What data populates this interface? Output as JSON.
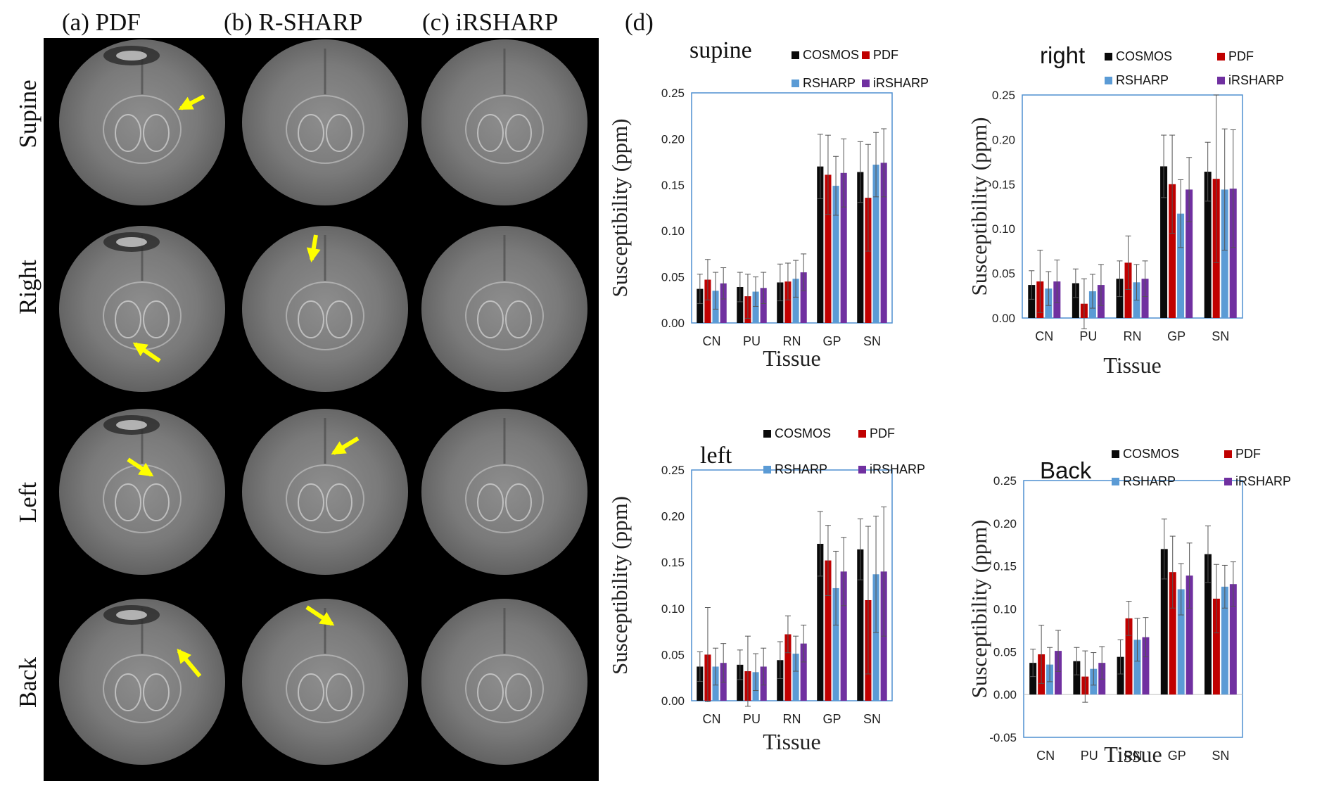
{
  "panel_a_label": "(a) PDF",
  "panel_b_label": "(b) R-SHARP",
  "panel_c_label": "(c) iRSHARP",
  "panel_d_label": "(d)",
  "row_labels": [
    "Supine",
    "Right",
    "Left",
    "Back"
  ],
  "colors": {
    "COSMOS": "#0a0a0a",
    "PDF": "#c00000",
    "RSHARP": "#5b9bd5",
    "iRSHARP": "#7030a0",
    "plot_border": "#4f8fd0",
    "arrow": "#ffff00"
  },
  "chart_data": [
    {
      "type": "bar",
      "title": "supine",
      "xlabel": "Tissue",
      "ylabel": "Susceptibility (ppm)",
      "ylim": [
        0,
        0.25
      ],
      "yticks": [
        "0.00",
        "0.05",
        "0.10",
        "0.15",
        "0.20",
        "0.25"
      ],
      "categories": [
        "CN",
        "PU",
        "RN",
        "GP",
        "SN"
      ],
      "legend": [
        "COSMOS",
        "PDF",
        "RSHARP",
        "iRSHARP"
      ],
      "series": [
        {
          "name": "COSMOS",
          "values": [
            0.037,
            0.039,
            0.044,
            0.17,
            0.164
          ],
          "errors": [
            0.016,
            0.016,
            0.02,
            0.035,
            0.033
          ]
        },
        {
          "name": "PDF",
          "values": [
            0.047,
            0.029,
            0.045,
            0.161,
            0.136
          ],
          "errors": [
            0.022,
            0.024,
            0.02,
            0.043,
            0.058
          ]
        },
        {
          "name": "RSHARP",
          "values": [
            0.035,
            0.034,
            0.048,
            0.149,
            0.172
          ],
          "errors": [
            0.02,
            0.016,
            0.02,
            0.032,
            0.035
          ]
        },
        {
          "name": "iRSHARP",
          "values": [
            0.043,
            0.038,
            0.055,
            0.163,
            0.174
          ],
          "errors": [
            0.017,
            0.017,
            0.02,
            0.037,
            0.037
          ]
        }
      ]
    },
    {
      "type": "bar",
      "title": "right",
      "xlabel": "Tissue",
      "ylabel": "Susceptibility (ppm)",
      "ylim": [
        0,
        0.25
      ],
      "yticks": [
        "0.00",
        "0.05",
        "0.10",
        "0.15",
        "0.20",
        "0.25"
      ],
      "categories": [
        "CN",
        "PU",
        "RN",
        "GP",
        "SN"
      ],
      "legend": [
        "COSMOS",
        "PDF",
        "RSHARP",
        "iRSHARP"
      ],
      "series": [
        {
          "name": "COSMOS",
          "values": [
            0.037,
            0.039,
            0.044,
            0.17,
            0.164
          ],
          "errors": [
            0.016,
            0.016,
            0.02,
            0.035,
            0.033
          ]
        },
        {
          "name": "PDF",
          "values": [
            0.041,
            0.016,
            0.062,
            0.15,
            0.156
          ],
          "errors": [
            0.035,
            0.028,
            0.03,
            0.055,
            0.094
          ]
        },
        {
          "name": "RSHARP",
          "values": [
            0.033,
            0.03,
            0.04,
            0.117,
            0.144
          ],
          "errors": [
            0.019,
            0.019,
            0.02,
            0.038,
            0.068
          ]
        },
        {
          "name": "iRSHARP",
          "values": [
            0.041,
            0.037,
            0.044,
            0.144,
            0.145
          ],
          "errors": [
            0.024,
            0.023,
            0.02,
            0.036,
            0.066
          ]
        }
      ]
    },
    {
      "type": "bar",
      "title": "left",
      "xlabel": "Tissue",
      "ylabel": "Susceptibility (ppm)",
      "ylim": [
        0,
        0.25
      ],
      "yticks": [
        "0.00",
        "0.05",
        "0.10",
        "0.15",
        "0.20",
        "0.25"
      ],
      "categories": [
        "CN",
        "PU",
        "RN",
        "GP",
        "SN"
      ],
      "legend": [
        "COSMOS",
        "PDF",
        "RSHARP",
        "iRSHARP"
      ],
      "series": [
        {
          "name": "COSMOS",
          "values": [
            0.037,
            0.039,
            0.044,
            0.17,
            0.164
          ],
          "errors": [
            0.016,
            0.016,
            0.02,
            0.035,
            0.033
          ]
        },
        {
          "name": "PDF",
          "values": [
            0.05,
            0.032,
            0.072,
            0.152,
            0.109
          ],
          "errors": [
            0.051,
            0.038,
            0.02,
            0.038,
            0.08
          ]
        },
        {
          "name": "RSHARP",
          "values": [
            0.037,
            0.031,
            0.051,
            0.122,
            0.137
          ],
          "errors": [
            0.02,
            0.02,
            0.019,
            0.04,
            0.063
          ]
        },
        {
          "name": "iRSHARP",
          "values": [
            0.041,
            0.037,
            0.062,
            0.14,
            0.14
          ],
          "errors": [
            0.021,
            0.02,
            0.02,
            0.037,
            0.07
          ]
        }
      ]
    },
    {
      "type": "bar",
      "title": "Back",
      "xlabel": "Tissue",
      "ylabel": "Susceptibility (ppm)",
      "ylim": [
        -0.05,
        0.25
      ],
      "yticks": [
        "-0.05",
        "0.00",
        "0.05",
        "0.10",
        "0.15",
        "0.20",
        "0.25"
      ],
      "categories": [
        "CN",
        "PU",
        "RN",
        "GP",
        "SN"
      ],
      "legend": [
        "COSMOS",
        "PDF",
        "RSHARP",
        "iRSHARP"
      ],
      "series": [
        {
          "name": "COSMOS",
          "values": [
            0.037,
            0.039,
            0.044,
            0.17,
            0.164
          ],
          "errors": [
            0.016,
            0.016,
            0.02,
            0.035,
            0.033
          ]
        },
        {
          "name": "PDF",
          "values": [
            0.047,
            0.021,
            0.089,
            0.143,
            0.112
          ],
          "errors": [
            0.034,
            0.03,
            0.02,
            0.042,
            0.04
          ]
        },
        {
          "name": "RSHARP",
          "values": [
            0.035,
            0.03,
            0.064,
            0.123,
            0.126
          ],
          "errors": [
            0.02,
            0.019,
            0.025,
            0.03,
            0.025
          ]
        },
        {
          "name": "iRSHARP",
          "values": [
            0.051,
            0.037,
            0.067,
            0.139,
            0.129
          ],
          "errors": [
            0.024,
            0.019,
            0.023,
            0.038,
            0.026
          ]
        }
      ]
    }
  ]
}
